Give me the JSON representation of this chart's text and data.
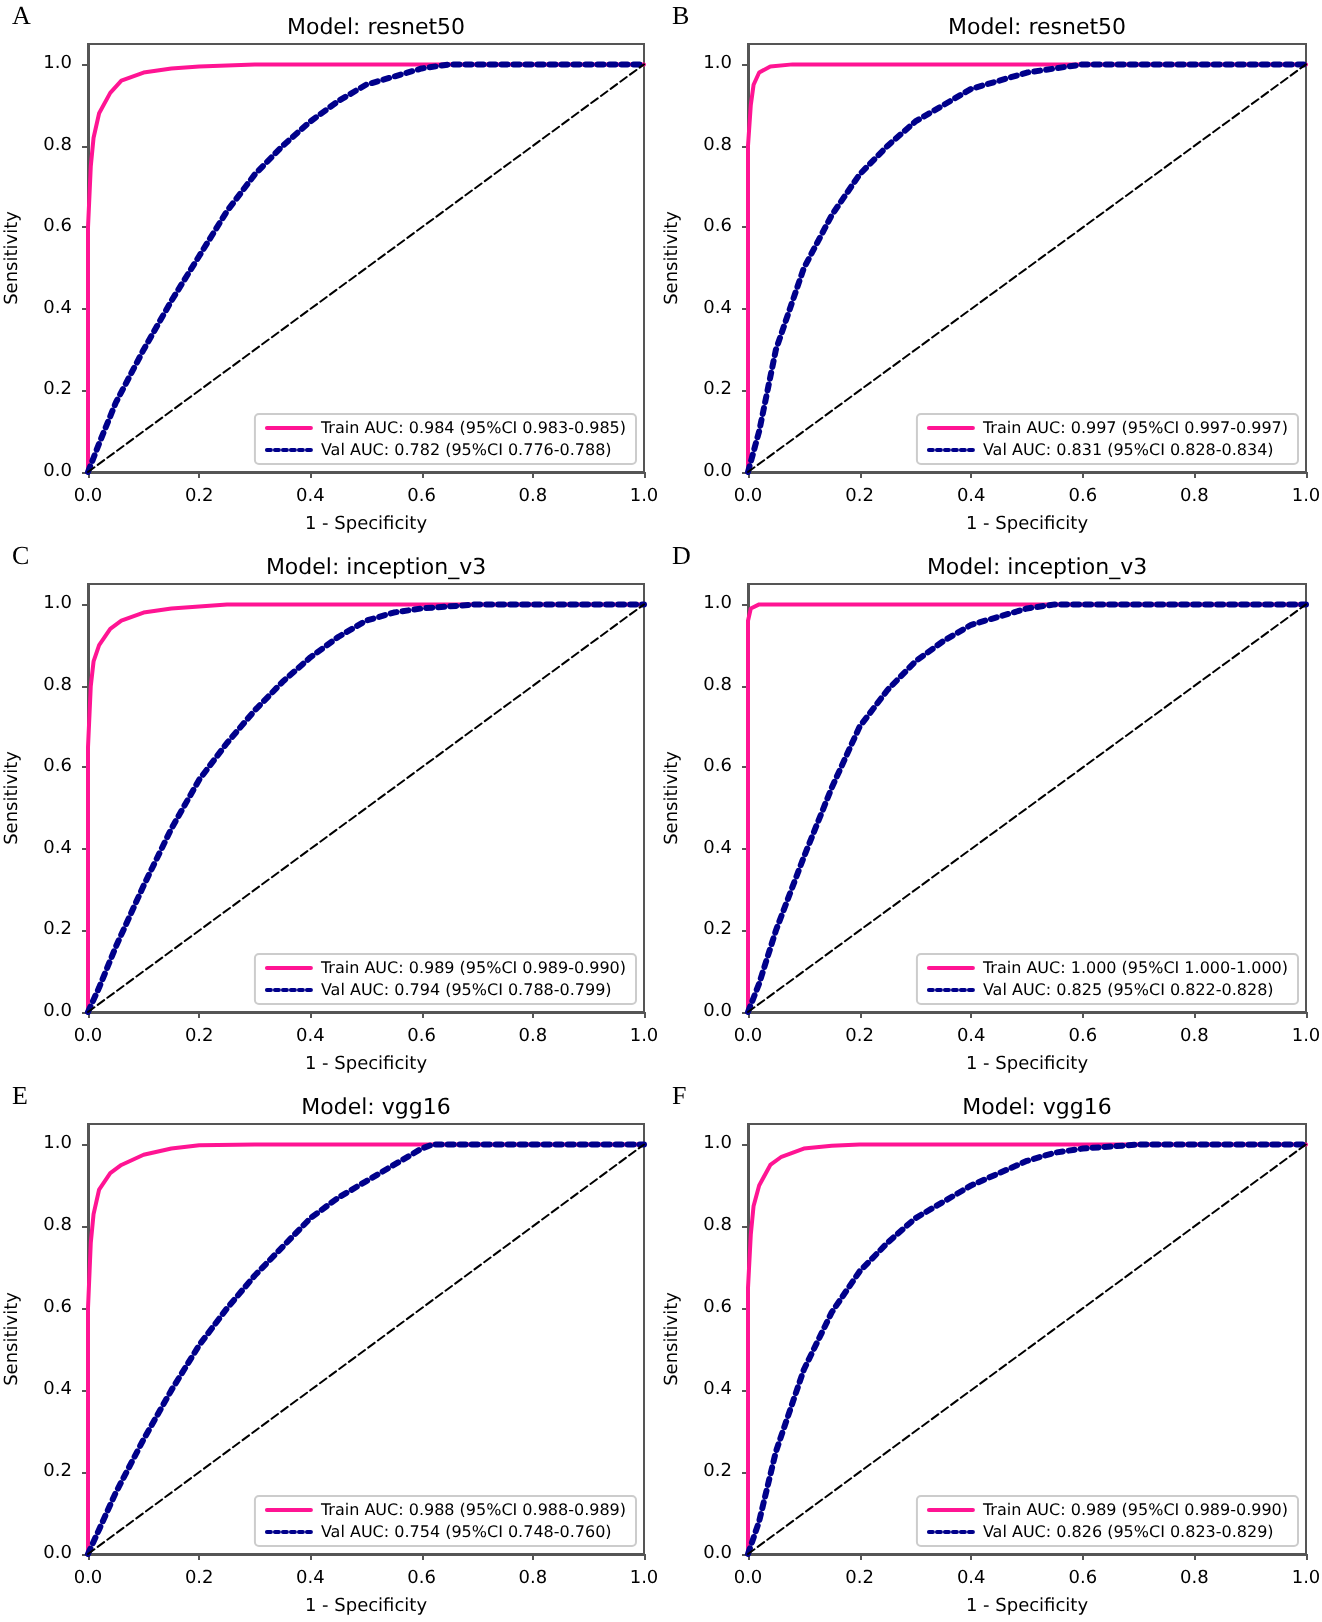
{
  "chart_data": [
    {
      "type": "line",
      "title": "Model: resnet50",
      "xlabel": "1 - Specificity",
      "ylabel": "Sensitivity",
      "annotations": [
        "A"
      ],
      "legend": "bottom right",
      "grid": false,
      "marker": "none",
      "xlim": [
        0,
        1
      ],
      "ylim": [
        0,
        1.05
      ],
      "xticks": [
        {
          "value": 0,
          "label": "0.0"
        },
        {
          "value": 0.2,
          "label": "0.2"
        },
        {
          "value": 0.4,
          "label": "0.4"
        },
        {
          "value": 0.6,
          "label": "0.6"
        },
        {
          "value": 0.8,
          "label": "0.8"
        },
        {
          "value": 1,
          "label": "1.0"
        }
      ],
      "yticks": [
        {
          "value": 0,
          "label": "0.0"
        },
        {
          "value": 0.2,
          "label": "0.2"
        },
        {
          "value": 0.4,
          "label": "0.4"
        },
        {
          "value": 0.6,
          "label": "0.6"
        },
        {
          "value": 0.8,
          "label": "0.8"
        },
        {
          "value": 1,
          "label": "1.0"
        }
      ],
      "series": [
        {
          "name": "Train AUC: 0.984 (95%CI 0.983-0.985)",
          "color": "#ff1493",
          "line_style": "solid",
          "x": [
            0,
            0,
            0.005,
            0.01,
            0.02,
            0.04,
            0.06,
            0.1,
            0.15,
            0.2,
            0.3,
            1
          ],
          "values": [
            0,
            0.6,
            0.75,
            0.82,
            0.88,
            0.93,
            0.96,
            0.98,
            0.99,
            0.995,
            1,
            1
          ]
        },
        {
          "name": "Val AUC: 0.782 (95%CI 0.776-0.788)",
          "color": "#00008b",
          "line_style": "dotted",
          "x": [
            0,
            0.02,
            0.05,
            0.1,
            0.15,
            0.2,
            0.25,
            0.3,
            0.35,
            0.4,
            0.45,
            0.5,
            0.55,
            0.6,
            0.65,
            1
          ],
          "values": [
            0,
            0.07,
            0.17,
            0.3,
            0.42,
            0.53,
            0.64,
            0.73,
            0.8,
            0.86,
            0.91,
            0.95,
            0.97,
            0.99,
            1,
            1
          ]
        },
        {
          "color": "#000000",
          "line_style": "dashed",
          "x": [
            0,
            1
          ],
          "values": [
            0,
            1
          ]
        }
      ]
    },
    {
      "type": "line",
      "title": "Model: resnet50",
      "xlabel": "1 - Specificity",
      "ylabel": "Sensitivity",
      "annotations": [
        "B"
      ],
      "legend": "bottom right",
      "grid": false,
      "marker": "none",
      "xlim": [
        0,
        1
      ],
      "ylim": [
        0,
        1.05
      ],
      "xticks": [
        {
          "value": 0,
          "label": "0.0"
        },
        {
          "value": 0.2,
          "label": "0.2"
        },
        {
          "value": 0.4,
          "label": "0.4"
        },
        {
          "value": 0.6,
          "label": "0.6"
        },
        {
          "value": 0.8,
          "label": "0.8"
        },
        {
          "value": 1,
          "label": "1.0"
        }
      ],
      "yticks": [
        {
          "value": 0,
          "label": "0.0"
        },
        {
          "value": 0.2,
          "label": "0.2"
        },
        {
          "value": 0.4,
          "label": "0.4"
        },
        {
          "value": 0.6,
          "label": "0.6"
        },
        {
          "value": 0.8,
          "label": "0.8"
        },
        {
          "value": 1,
          "label": "1.0"
        }
      ],
      "series": [
        {
          "name": "Train AUC: 0.997 (95%CI 0.997-0.997)",
          "color": "#ff1493",
          "line_style": "solid",
          "x": [
            0,
            0,
            0.005,
            0.01,
            0.02,
            0.04,
            0.08,
            1
          ],
          "values": [
            0,
            0.8,
            0.9,
            0.95,
            0.98,
            0.995,
            1,
            1
          ]
        },
        {
          "name": "Val AUC: 0.831 (95%CI 0.828-0.834)",
          "color": "#00008b",
          "line_style": "dotted",
          "x": [
            0,
            0.02,
            0.05,
            0.1,
            0.15,
            0.2,
            0.25,
            0.3,
            0.35,
            0.4,
            0.45,
            0.5,
            0.6,
            1
          ],
          "values": [
            0,
            0.1,
            0.3,
            0.5,
            0.63,
            0.73,
            0.8,
            0.86,
            0.9,
            0.94,
            0.96,
            0.98,
            1,
            1
          ]
        },
        {
          "color": "#000000",
          "line_style": "dashed",
          "x": [
            0,
            1
          ],
          "values": [
            0,
            1
          ]
        }
      ]
    },
    {
      "type": "line",
      "title": "Model: inception_v3",
      "xlabel": "1 - Specificity",
      "ylabel": "Sensitivity",
      "annotations": [
        "C"
      ],
      "legend": "bottom right",
      "grid": false,
      "marker": "none",
      "xlim": [
        0,
        1
      ],
      "ylim": [
        0,
        1.05
      ],
      "xticks": [
        {
          "value": 0,
          "label": "0.0"
        },
        {
          "value": 0.2,
          "label": "0.2"
        },
        {
          "value": 0.4,
          "label": "0.4"
        },
        {
          "value": 0.6,
          "label": "0.6"
        },
        {
          "value": 0.8,
          "label": "0.8"
        },
        {
          "value": 1,
          "label": "1.0"
        }
      ],
      "yticks": [
        {
          "value": 0,
          "label": "0.0"
        },
        {
          "value": 0.2,
          "label": "0.2"
        },
        {
          "value": 0.4,
          "label": "0.4"
        },
        {
          "value": 0.6,
          "label": "0.6"
        },
        {
          "value": 0.8,
          "label": "0.8"
        },
        {
          "value": 1,
          "label": "1.0"
        }
      ],
      "series": [
        {
          "name": "Train AUC: 0.989 (95%CI 0.989-0.990)",
          "color": "#ff1493",
          "line_style": "solid",
          "x": [
            0,
            0,
            0.005,
            0.01,
            0.02,
            0.04,
            0.06,
            0.1,
            0.15,
            0.25,
            1
          ],
          "values": [
            0,
            0.65,
            0.8,
            0.86,
            0.9,
            0.94,
            0.96,
            0.98,
            0.99,
            1,
            1
          ]
        },
        {
          "name": "Val AUC: 0.794 (95%CI 0.788-0.799)",
          "color": "#00008b",
          "line_style": "dotted",
          "x": [
            0,
            0.02,
            0.05,
            0.1,
            0.15,
            0.2,
            0.25,
            0.3,
            0.35,
            0.4,
            0.45,
            0.5,
            0.55,
            0.6,
            0.7,
            1
          ],
          "values": [
            0,
            0.06,
            0.16,
            0.31,
            0.45,
            0.57,
            0.66,
            0.74,
            0.81,
            0.87,
            0.92,
            0.96,
            0.98,
            0.99,
            1,
            1
          ]
        },
        {
          "color": "#000000",
          "line_style": "dashed",
          "x": [
            0,
            1
          ],
          "values": [
            0,
            1
          ]
        }
      ]
    },
    {
      "type": "line",
      "title": "Model: inception_v3",
      "xlabel": "1 - Specificity",
      "ylabel": "Sensitivity",
      "annotations": [
        "D"
      ],
      "legend": "bottom right",
      "grid": false,
      "marker": "none",
      "xlim": [
        0,
        1
      ],
      "ylim": [
        0,
        1.05
      ],
      "xticks": [
        {
          "value": 0,
          "label": "0.0"
        },
        {
          "value": 0.2,
          "label": "0.2"
        },
        {
          "value": 0.4,
          "label": "0.4"
        },
        {
          "value": 0.6,
          "label": "0.6"
        },
        {
          "value": 0.8,
          "label": "0.8"
        },
        {
          "value": 1,
          "label": "1.0"
        }
      ],
      "yticks": [
        {
          "value": 0,
          "label": "0.0"
        },
        {
          "value": 0.2,
          "label": "0.2"
        },
        {
          "value": 0.4,
          "label": "0.4"
        },
        {
          "value": 0.6,
          "label": "0.6"
        },
        {
          "value": 0.8,
          "label": "0.8"
        },
        {
          "value": 1,
          "label": "1.0"
        }
      ],
      "series": [
        {
          "name": "Train AUC: 1.000 (95%CI 1.000-1.000)",
          "color": "#ff1493",
          "line_style": "solid",
          "x": [
            0,
            0,
            0.005,
            0.02,
            1
          ],
          "values": [
            0,
            0.96,
            0.99,
            1,
            1
          ]
        },
        {
          "name": "Val AUC: 0.825 (95%CI 0.822-0.828)",
          "color": "#00008b",
          "line_style": "dotted",
          "x": [
            0,
            0.02,
            0.05,
            0.1,
            0.15,
            0.2,
            0.25,
            0.3,
            0.35,
            0.4,
            0.45,
            0.5,
            0.55,
            1
          ],
          "values": [
            0,
            0.07,
            0.2,
            0.38,
            0.55,
            0.7,
            0.79,
            0.86,
            0.91,
            0.95,
            0.97,
            0.99,
            1,
            1
          ]
        },
        {
          "color": "#000000",
          "line_style": "dashed",
          "x": [
            0,
            1
          ],
          "values": [
            0,
            1
          ]
        }
      ]
    },
    {
      "type": "line",
      "title": "Model: vgg16",
      "xlabel": "1 - Specificity",
      "ylabel": "Sensitivity",
      "annotations": [
        "E"
      ],
      "legend": "bottom right",
      "grid": false,
      "marker": "none",
      "xlim": [
        0,
        1
      ],
      "ylim": [
        0,
        1.05
      ],
      "xticks": [
        {
          "value": 0,
          "label": "0.0"
        },
        {
          "value": 0.2,
          "label": "0.2"
        },
        {
          "value": 0.4,
          "label": "0.4"
        },
        {
          "value": 0.6,
          "label": "0.6"
        },
        {
          "value": 0.8,
          "label": "0.8"
        },
        {
          "value": 1,
          "label": "1.0"
        }
      ],
      "yticks": [
        {
          "value": 0,
          "label": "0.0"
        },
        {
          "value": 0.2,
          "label": "0.2"
        },
        {
          "value": 0.4,
          "label": "0.4"
        },
        {
          "value": 0.6,
          "label": "0.6"
        },
        {
          "value": 0.8,
          "label": "0.8"
        },
        {
          "value": 1,
          "label": "1.0"
        }
      ],
      "series": [
        {
          "name": "Train AUC: 0.988 (95%CI 0.988-0.989)",
          "color": "#ff1493",
          "line_style": "solid",
          "x": [
            0,
            0,
            0.005,
            0.01,
            0.02,
            0.04,
            0.06,
            0.1,
            0.15,
            0.2,
            0.3,
            1
          ],
          "values": [
            0,
            0.6,
            0.76,
            0.83,
            0.89,
            0.93,
            0.95,
            0.975,
            0.99,
            0.998,
            1,
            1
          ]
        },
        {
          "name": "Val AUC: 0.754 (95%CI 0.748-0.760)",
          "color": "#00008b",
          "line_style": "dotted",
          "x": [
            0,
            0.02,
            0.05,
            0.1,
            0.15,
            0.2,
            0.25,
            0.3,
            0.35,
            0.4,
            0.45,
            0.5,
            0.55,
            0.6,
            0.62,
            1
          ],
          "values": [
            0,
            0.06,
            0.15,
            0.28,
            0.4,
            0.51,
            0.6,
            0.68,
            0.75,
            0.82,
            0.87,
            0.91,
            0.95,
            0.99,
            1,
            1
          ]
        },
        {
          "color": "#000000",
          "line_style": "dashed",
          "x": [
            0,
            1
          ],
          "values": [
            0,
            1
          ]
        }
      ]
    },
    {
      "type": "line",
      "title": "Model: vgg16",
      "xlabel": "1 - Specificity",
      "ylabel": "Sensitivity",
      "annotations": [
        "F"
      ],
      "legend": "bottom right",
      "grid": false,
      "marker": "none",
      "xlim": [
        0,
        1
      ],
      "ylim": [
        0,
        1.05
      ],
      "xticks": [
        {
          "value": 0,
          "label": "0.0"
        },
        {
          "value": 0.2,
          "label": "0.2"
        },
        {
          "value": 0.4,
          "label": "0.4"
        },
        {
          "value": 0.6,
          "label": "0.6"
        },
        {
          "value": 0.8,
          "label": "0.8"
        },
        {
          "value": 1,
          "label": "1.0"
        }
      ],
      "yticks": [
        {
          "value": 0,
          "label": "0.0"
        },
        {
          "value": 0.2,
          "label": "0.2"
        },
        {
          "value": 0.4,
          "label": "0.4"
        },
        {
          "value": 0.6,
          "label": "0.6"
        },
        {
          "value": 0.8,
          "label": "0.8"
        },
        {
          "value": 1,
          "label": "1.0"
        }
      ],
      "series": [
        {
          "name": "Train AUC: 0.989 (95%CI 0.989-0.990)",
          "color": "#ff1493",
          "line_style": "solid",
          "x": [
            0,
            0,
            0.005,
            0.01,
            0.02,
            0.04,
            0.06,
            0.1,
            0.15,
            0.2,
            1
          ],
          "values": [
            0,
            0.65,
            0.78,
            0.85,
            0.9,
            0.95,
            0.97,
            0.99,
            0.997,
            1,
            1
          ]
        },
        {
          "name": "Val AUC: 0.826 (95%CI 0.823-0.829)",
          "color": "#00008b",
          "line_style": "dotted",
          "x": [
            0,
            0.02,
            0.05,
            0.1,
            0.15,
            0.2,
            0.25,
            0.3,
            0.35,
            0.4,
            0.45,
            0.5,
            0.55,
            0.6,
            0.7,
            1
          ],
          "values": [
            0,
            0.08,
            0.25,
            0.45,
            0.59,
            0.69,
            0.76,
            0.82,
            0.86,
            0.9,
            0.93,
            0.96,
            0.98,
            0.99,
            1,
            1
          ]
        },
        {
          "color": "#000000",
          "line_style": "dashed",
          "x": [
            0,
            1
          ],
          "values": [
            0,
            1
          ]
        }
      ]
    }
  ]
}
